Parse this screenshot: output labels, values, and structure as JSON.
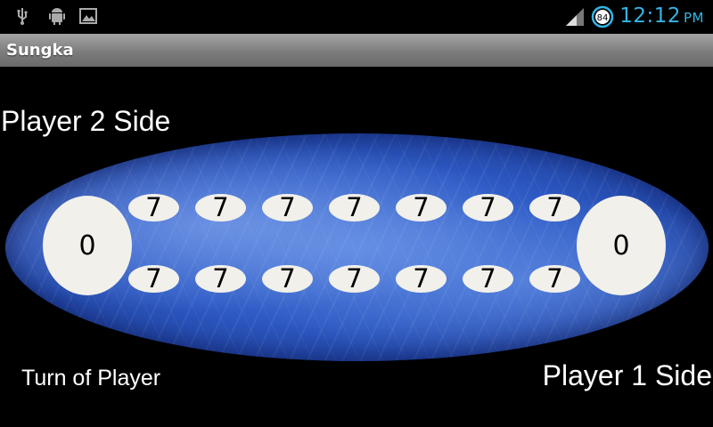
{
  "status_bar": {
    "time": "12:12",
    "ampm": "PM",
    "battery": "84",
    "left_icons": [
      "usb-icon",
      "android-debug-icon",
      "picture-icon"
    ],
    "right_icons": [
      "signal-icon",
      "battery-icon"
    ],
    "accent_color": "#33b5e5"
  },
  "app": {
    "title": "Sungka"
  },
  "labels": {
    "player2_side": "Player 2 Side",
    "player1_side": "Player 1 Side",
    "turn": "Turn of Player"
  },
  "board": {
    "left_store": "0",
    "right_store": "0",
    "top_pits": [
      "7",
      "7",
      "7",
      "7",
      "7",
      "7",
      "7"
    ],
    "bottom_pits": [
      "7",
      "7",
      "7",
      "7",
      "7",
      "7",
      "7"
    ]
  }
}
